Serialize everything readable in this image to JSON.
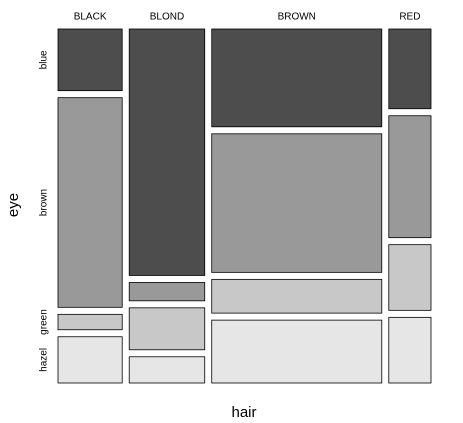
{
  "chart_data": {
    "type": "mosaic",
    "x_label": "hair",
    "y_label": "eye",
    "categories": [
      "BLACK",
      "BLOND",
      "BROWN",
      "RED"
    ],
    "series": [
      {
        "name": "blue",
        "color": "#4d4d4d",
        "values": [
          20,
          94,
          84,
          17
        ]
      },
      {
        "name": "brown",
        "color": "#999999",
        "values": [
          68,
          7,
          119,
          26
        ]
      },
      {
        "name": "green",
        "color": "#c8c8c8",
        "values": [
          5,
          16,
          29,
          14
        ]
      },
      {
        "name": "hazel",
        "color": "#e6e6e6",
        "values": [
          15,
          10,
          54,
          14
        ]
      }
    ]
  }
}
